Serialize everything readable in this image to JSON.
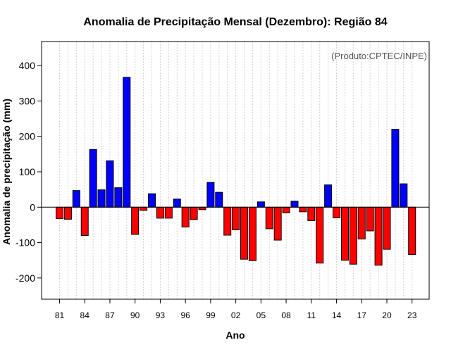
{
  "chart_data": {
    "type": "bar",
    "title": "Anomalia de Precipitação Mensal (Dezembro): Região 84",
    "xlabel": "Ano",
    "ylabel": "Anomalia de precipitação (mm)",
    "annotation": "(Produto:CPTEC/INPE)",
    "ylim": [
      -260,
      468
    ],
    "yticks": [
      -200,
      -100,
      0,
      100,
      200,
      300,
      400
    ],
    "grid": "vertical dotted",
    "colors": {
      "positive": "#0000ff",
      "negative": "#ff0000",
      "zero_line": "#000000",
      "grid": "#d3d3d3"
    },
    "x_tick_labels": [
      "81",
      "84",
      "87",
      "90",
      "93",
      "96",
      "99",
      "02",
      "05",
      "08",
      "11",
      "14",
      "17",
      "20",
      "23"
    ],
    "categories": [
      "1981",
      "1982",
      "1983",
      "1984",
      "1985",
      "1986",
      "1987",
      "1988",
      "1989",
      "1990",
      "1991",
      "1992",
      "1993",
      "1994",
      "1995",
      "1996",
      "1997",
      "1998",
      "1999",
      "2000",
      "2001",
      "2002",
      "2003",
      "2004",
      "2005",
      "2006",
      "2007",
      "2008",
      "2009",
      "2010",
      "2011",
      "2012",
      "2013",
      "2014",
      "2015",
      "2016",
      "2017",
      "2018",
      "2019",
      "2020",
      "2021",
      "2022",
      "2023"
    ],
    "values": [
      -32,
      -34,
      47,
      -80,
      163,
      49,
      131,
      55,
      367,
      -77,
      -9,
      38,
      -31,
      -31,
      23,
      -56,
      -35,
      -7,
      70,
      42,
      -79,
      -64,
      -147,
      -151,
      15,
      -61,
      -93,
      -16,
      17,
      -13,
      -38,
      -158,
      63,
      -30,
      -150,
      -161,
      -90,
      -67,
      -164,
      -119,
      220,
      66,
      -134
    ]
  }
}
